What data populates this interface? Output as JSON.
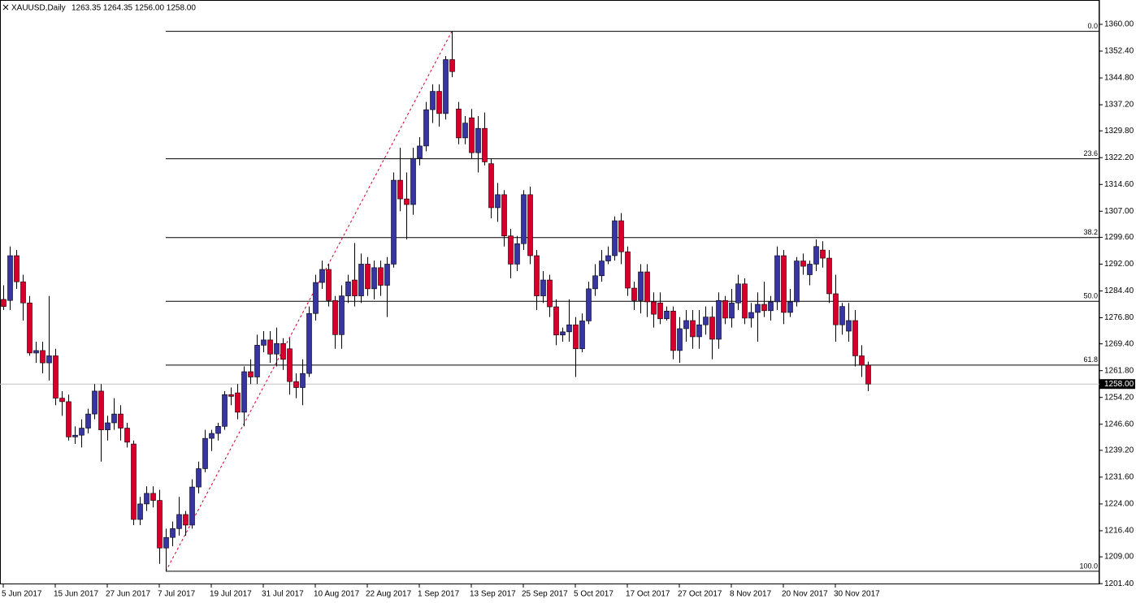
{
  "chart_data": {
    "type": "candlestick",
    "title": "XAUUSD,Daily",
    "ohlc_text": "1263.35 1264.35 1256.00 1258.00",
    "categories": [
      "5 Jun 2017",
      null,
      null,
      null,
      null,
      null,
      null,
      null,
      "15 Jun 2017",
      null,
      null,
      null,
      null,
      null,
      null,
      null,
      "27 Jun 2017",
      null,
      null,
      null,
      null,
      null,
      null,
      null,
      "7 Jul 2017",
      null,
      null,
      null,
      null,
      null,
      null,
      null,
      "19 Jul 2017",
      null,
      null,
      null,
      null,
      null,
      null,
      null,
      "31 Jul 2017",
      null,
      null,
      null,
      null,
      null,
      null,
      null,
      "10 Aug 2017",
      null,
      null,
      null,
      null,
      null,
      null,
      null,
      "22 Aug 2017",
      null,
      null,
      null,
      null,
      null,
      null,
      null,
      "1 Sep 2017",
      null,
      null,
      null,
      null,
      null,
      null,
      null,
      "13 Sep 2017",
      null,
      null,
      null,
      null,
      null,
      null,
      null,
      "25 Sep 2017",
      null,
      null,
      null,
      null,
      null,
      null,
      null,
      "5 Oct 2017",
      null,
      null,
      null,
      null,
      null,
      null,
      null,
      "17 Oct 2017",
      null,
      null,
      null,
      null,
      null,
      null,
      null,
      "27 Oct 2017",
      null,
      null,
      null,
      null,
      null,
      null,
      null,
      "8 Nov 2017",
      null,
      null,
      null,
      null,
      null,
      null,
      null,
      "20 Nov 2017",
      null,
      null,
      null,
      null,
      null,
      null,
      null,
      "30 Nov 2017",
      null,
      null,
      null,
      null,
      null
    ],
    "open": [
      1282,
      1281.7,
      1294.4,
      1287,
      1281,
      1266.8,
      1267.5,
      1264,
      1266,
      1254,
      1253,
      1243,
      1243.5,
      1245.5,
      1249.5,
      1256,
      1245,
      1247,
      1249.5,
      1245.5,
      1241,
      1219.6,
      1224,
      1227,
      1225,
      1211.5,
      1214.5,
      1217,
      1221,
      1218,
      1228.8,
      1234,
      1242.6,
      1244,
      1246,
      1255,
      1255.5,
      1250,
      1261.5,
      1260,
      1269,
      1270.5,
      1266.5,
      1269.5,
      1268,
      1258.7,
      1257,
      1261,
      1278,
      1286.8,
      1290.5,
      1281.7,
      1272,
      1283,
      1287.5,
      1283,
      1292,
      1285,
      1291,
      1286,
      1292,
      1315.8,
      1310.5,
      1308.9,
      1322,
      1325.5,
      1335.8,
      1341,
      1334.7,
      1350,
      1336,
      1327.8,
      1333.5,
      1323.6,
      1330.5,
      1320.5,
      1308,
      1311.7,
      1300,
      1292,
      1297.8,
      1311.7,
      1294.4,
      1283,
      1287.5,
      1279.9,
      1271.9,
      1272.8,
      1274.8,
      1268,
      1275.9,
      1285,
      1288.7,
      1292.9,
      1294.4,
      1304.3,
      1295.5,
      1285.2,
      1281.7,
      1289.8,
      1281.3,
      1281,
      1276.5,
      1278.7,
      1267.5,
      1273.7,
      1276,
      1271.4,
      1274.8,
      1277,
      1270.7,
      1281.7,
      1276.7,
      1281,
      1286.4,
      1276.7,
      1278.3,
      1280.6,
      1278.8,
      1281.3,
      1294.4,
      1278.3,
      1281.3,
      1292.9,
      1289,
      1292,
      1296,
      1293.7,
      1283.6,
      1274.8,
      1273,
      1276,
      1266,
      1263.35
    ],
    "high": [
      1286,
      1297,
      1296,
      1289,
      1283,
      1270,
      1270,
      1283,
      1268,
      1256,
      1255,
      1246,
      1248,
      1251,
      1258,
      1258,
      1249,
      1254,
      1252,
      1247,
      1242,
      1226,
      1229,
      1229,
      1228,
      1217,
      1219,
      1226,
      1222,
      1231,
      1236,
      1245,
      1245,
      1247,
      1256,
      1257,
      1258,
      1263,
      1265,
      1272,
      1273,
      1273,
      1274,
      1271,
      1271,
      1261,
      1265,
      1280,
      1289,
      1293,
      1292,
      1283,
      1286,
      1289,
      1298,
      1295,
      1294,
      1293,
      1293,
      1294,
      1318,
      1325,
      1318,
      1325,
      1328,
      1338,
      1343,
      1343,
      1351,
      1358,
      1338,
      1334,
      1336,
      1334,
      1335,
      1322,
      1315,
      1313,
      1302,
      1300,
      1313,
      1314,
      1296,
      1290,
      1289,
      1282,
      1274,
      1282,
      1277,
      1278,
      1287,
      1292,
      1296,
      1297,
      1305.5,
      1306.5,
      1297,
      1287,
      1292,
      1292,
      1284,
      1284,
      1280,
      1280,
      1277,
      1279,
      1279,
      1279,
      1280,
      1280,
      1284,
      1283,
      1285,
      1289,
      1288,
      1281,
      1284,
      1287,
      1283,
      1297,
      1296,
      1285,
      1294,
      1295,
      1293,
      1299,
      1298.5,
      1296,
      1289,
      1281,
      1281,
      1279,
      1269,
      1264.35
    ],
    "low": [
      1279,
      1279,
      1285,
      1276,
      1266,
      1264,
      1261,
      1259,
      1252,
      1249,
      1242,
      1241,
      1240,
      1244,
      1248,
      1236,
      1242,
      1245,
      1242,
      1240,
      1218,
      1218,
      1222,
      1223,
      1207,
      1204.9,
      1212,
      1215,
      1215,
      1217,
      1227,
      1233,
      1239,
      1242,
      1245,
      1252,
      1248,
      1246,
      1258,
      1258,
      1267,
      1264,
      1263,
      1262,
      1255,
      1254,
      1252,
      1260,
      1276,
      1285,
      1280,
      1268,
      1268,
      1281,
      1280,
      1281,
      1283,
      1282,
      1283,
      1277,
      1291,
      1307,
      1299,
      1306,
      1320,
      1324,
      1332,
      1331,
      1333,
      1345,
      1326,
      1326,
      1322,
      1318,
      1320,
      1305,
      1304,
      1297,
      1288,
      1290,
      1296,
      1292,
      1279,
      1281,
      1277,
      1269,
      1270,
      1270,
      1260,
      1267,
      1275,
      1283,
      1287,
      1292,
      1293,
      1292,
      1283,
      1279,
      1278,
      1277,
      1274,
      1275,
      1276,
      1265,
      1264,
      1270,
      1268,
      1268,
      1272,
      1265,
      1268,
      1275,
      1274,
      1279,
      1275,
      1274,
      1270,
      1277,
      1276,
      1279,
      1275,
      1277,
      1280,
      1289,
      1286,
      1290,
      1291,
      1281,
      1270,
      1272,
      1270,
      1263,
      1260,
      1256
    ],
    "close": [
      1280,
      1294.4,
      1287,
      1281,
      1266.8,
      1267.5,
      1264,
      1266,
      1254,
      1253,
      1243,
      1243.5,
      1245.5,
      1249.5,
      1256,
      1245,
      1247,
      1249.5,
      1245.5,
      1241.5,
      1219.6,
      1224,
      1227,
      1225,
      1211.5,
      1214.5,
      1217,
      1221,
      1218,
      1228.8,
      1234,
      1242.6,
      1244,
      1246,
      1255,
      1254.5,
      1250,
      1261.5,
      1260,
      1269,
      1270.5,
      1266.5,
      1269.5,
      1265,
      1258.7,
      1257,
      1261,
      1278,
      1286.8,
      1290.5,
      1281.7,
      1272,
      1283,
      1287,
      1283,
      1292,
      1285,
      1291,
      1286,
      1292,
      1315.8,
      1310.5,
      1308.9,
      1322,
      1325.5,
      1335.8,
      1341,
      1334.7,
      1350,
      1346.6,
      1327.8,
      1332,
      1323.6,
      1330.5,
      1321,
      1308,
      1311.7,
      1300,
      1292,
      1297.8,
      1311.7,
      1294.4,
      1283,
      1287.5,
      1279.9,
      1271.9,
      1272.8,
      1274.8,
      1268,
      1275.9,
      1285,
      1288.7,
      1292.9,
      1294.4,
      1304.3,
      1295.5,
      1285.2,
      1281.7,
      1289.8,
      1281.3,
      1277.8,
      1276.5,
      1278.7,
      1267.5,
      1273.7,
      1276,
      1271.4,
      1274.8,
      1277,
      1270.7,
      1281.7,
      1276.7,
      1281,
      1286.4,
      1276.7,
      1278.3,
      1280.6,
      1278.8,
      1281.3,
      1294.4,
      1278.3,
      1281.3,
      1292.9,
      1291.4,
      1292,
      1297,
      1293.7,
      1283.6,
      1274.8,
      1280,
      1276,
      1266,
      1263.35,
      1258
    ],
    "up_color": "#36369c",
    "down_color": "#d2002a",
    "ylim": [
      1201.2,
      1364.6
    ],
    "yticks": [
      {
        "value": 1360,
        "label": "1360.00"
      },
      {
        "value": 1352.4,
        "label": "1352.40"
      },
      {
        "value": 1344.8,
        "label": "1344.80"
      },
      {
        "value": 1337.2,
        "label": "1337.20"
      },
      {
        "value": 1329.8,
        "label": "1329.80"
      },
      {
        "value": 1322.2,
        "label": "1322.20"
      },
      {
        "value": 1314.6,
        "label": "1314.60"
      },
      {
        "value": 1307,
        "label": "1307.00"
      },
      {
        "value": 1299.6,
        "label": "1299.60"
      },
      {
        "value": 1292,
        "label": "1292.00"
      },
      {
        "value": 1284.4,
        "label": "1284.40"
      },
      {
        "value": 1276.8,
        "label": "1276.80"
      },
      {
        "value": 1269.4,
        "label": "1269.40"
      },
      {
        "value": 1261.8,
        "label": "1261.80"
      },
      {
        "value": 1254.2,
        "label": "1254.20"
      },
      {
        "value": 1246.6,
        "label": "1246.60"
      },
      {
        "value": 1239.2,
        "label": "1239.20"
      },
      {
        "value": 1231.6,
        "label": "1231.60"
      },
      {
        "value": 1224,
        "label": "1224.00"
      },
      {
        "value": 1216.4,
        "label": "1216.40"
      },
      {
        "value": 1209,
        "label": "1209.00"
      },
      {
        "value": 1201.4,
        "label": "1201.40"
      }
    ],
    "fib_levels": [
      {
        "label": "0.0",
        "price": 1358
      },
      {
        "label": "23.6",
        "price": 1321.87
      },
      {
        "label": "38.2",
        "price": 1299.52
      },
      {
        "label": "50.0",
        "price": 1281.45
      },
      {
        "label": "61.8",
        "price": 1263.38
      },
      {
        "label": "100.0",
        "price": 1204.9
      }
    ],
    "last_price": {
      "value": 1258,
      "label": "1258.00"
    },
    "grid": false
  }
}
